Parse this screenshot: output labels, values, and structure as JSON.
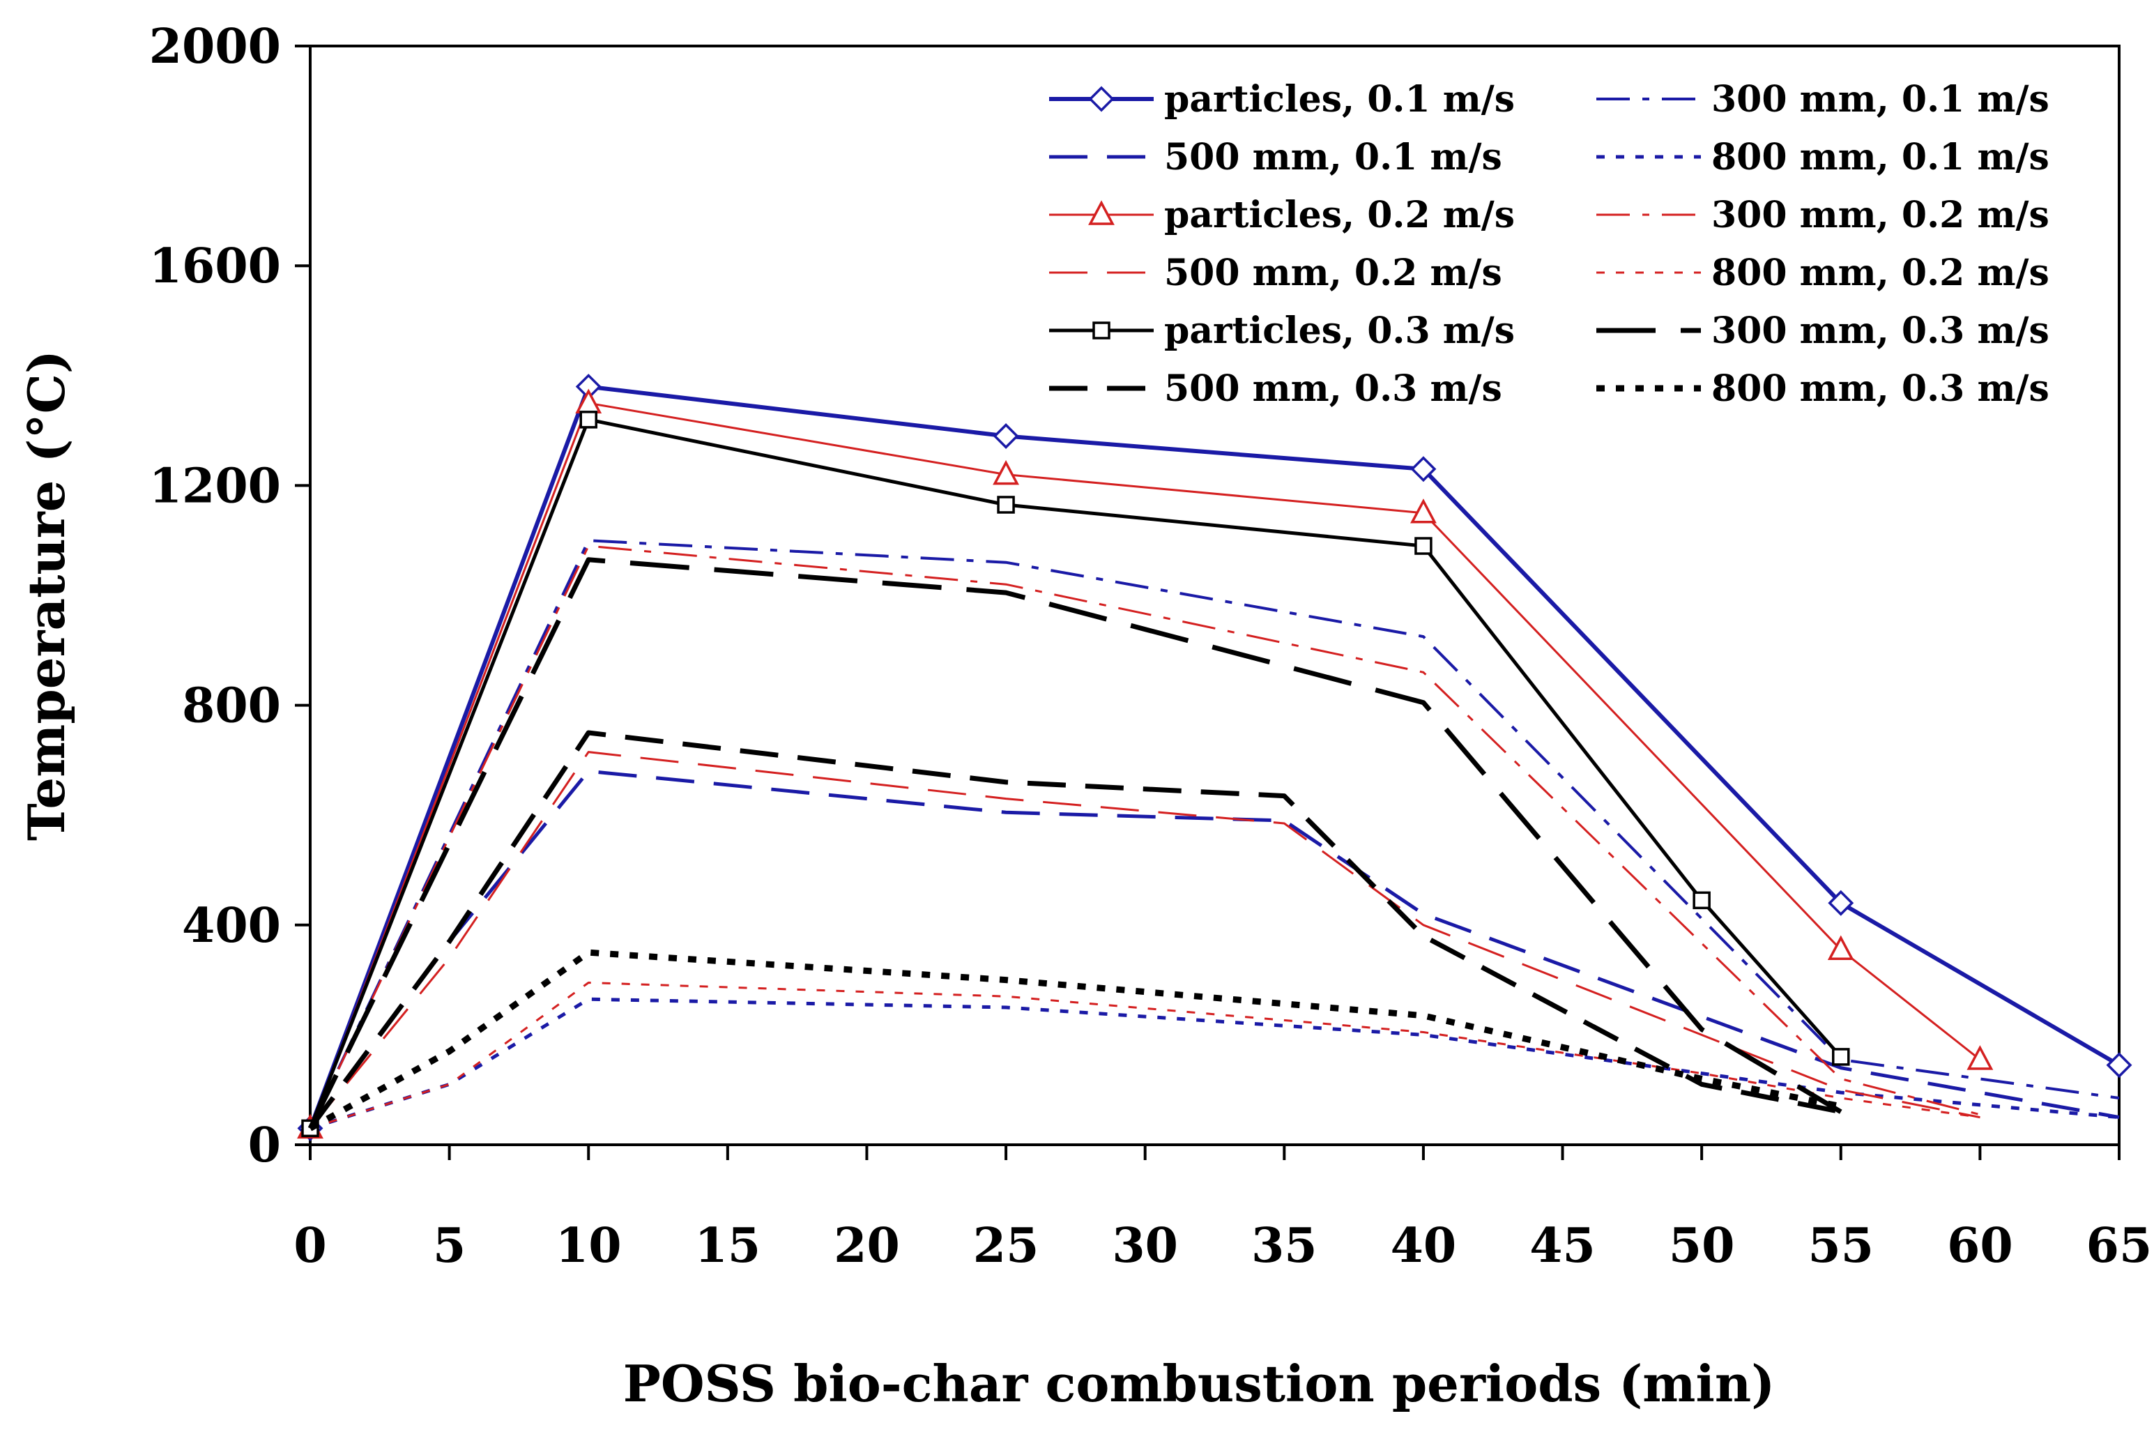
{
  "chart_data": {
    "type": "line",
    "xlabel": "POSS bio-char combustion periods (min)",
    "ylabel": "Temperature (°C)",
    "x_categories": [
      "0",
      "5",
      "10",
      "15",
      "20",
      "25",
      "30",
      "35",
      "40",
      "45",
      "50",
      "55",
      "60",
      "65"
    ],
    "x_note": "x values are the printed tick labels; points are placed on the evenly spaced category positions",
    "ylim": [
      0,
      2000
    ],
    "y_ticks": [
      "0",
      "400",
      "800",
      "1200",
      "1600",
      "2000"
    ],
    "grid": false,
    "legend_position": "top-right",
    "series": [
      {
        "name": "particles, 0.1 m/s",
        "color": "#1a1aa6",
        "style": "solid",
        "width": 6,
        "marker": "diamond",
        "x": [
          "0",
          "10",
          "25",
          "40",
          "55",
          "65"
        ],
        "y": [
          30,
          1380,
          1290,
          1230,
          440,
          145
        ]
      },
      {
        "name": "300 mm, 0.1 m/s",
        "color": "#1a1aa6",
        "style": "dashdot",
        "width": 4,
        "marker": "none",
        "x": [
          "0",
          "10",
          "25",
          "40",
          "55",
          "65"
        ],
        "y": [
          30,
          1100,
          1060,
          925,
          155,
          85
        ]
      },
      {
        "name": "500 mm, 0.1 m/s",
        "color": "#1a1aa6",
        "style": "dash",
        "width": 5,
        "marker": "none",
        "x": [
          "0",
          "5",
          "10",
          "25",
          "35",
          "40",
          "55",
          "65"
        ],
        "y": [
          30,
          370,
          680,
          605,
          590,
          420,
          140,
          50
        ]
      },
      {
        "name": "800 mm, 0.1 m/s",
        "color": "#1a1aa6",
        "style": "dot",
        "width": 5,
        "marker": "none",
        "x": [
          "0",
          "5",
          "10",
          "25",
          "40",
          "50",
          "55",
          "65"
        ],
        "y": [
          30,
          110,
          265,
          250,
          200,
          130,
          95,
          50
        ]
      },
      {
        "name": "particles, 0.2 m/s",
        "color": "#d42020",
        "style": "solid",
        "width": 3,
        "marker": "triangle",
        "x": [
          "0",
          "10",
          "25",
          "40",
          "55",
          "60"
        ],
        "y": [
          30,
          1350,
          1220,
          1150,
          355,
          155
        ]
      },
      {
        "name": "300 mm, 0.2 m/s",
        "color": "#d42020",
        "style": "dashdot",
        "width": 3,
        "marker": "none",
        "x": [
          "0",
          "10",
          "25",
          "40",
          "55",
          "60"
        ],
        "y": [
          30,
          1090,
          1020,
          860,
          120,
          55
        ]
      },
      {
        "name": "500 mm, 0.2 m/s",
        "color": "#d42020",
        "style": "dash",
        "width": 3,
        "marker": "none",
        "x": [
          "0",
          "5",
          "10",
          "25",
          "35",
          "40",
          "55",
          "60"
        ],
        "y": [
          30,
          340,
          715,
          630,
          585,
          400,
          100,
          50
        ]
      },
      {
        "name": "800 mm, 0.2 m/s",
        "color": "#d42020",
        "style": "dot",
        "width": 3,
        "marker": "none",
        "x": [
          "0",
          "5",
          "10",
          "25",
          "40",
          "50",
          "55",
          "60"
        ],
        "y": [
          30,
          110,
          295,
          270,
          205,
          130,
          85,
          50
        ]
      },
      {
        "name": "particles, 0.3 m/s",
        "color": "#000000",
        "style": "solid",
        "width": 5,
        "marker": "square",
        "x": [
          "0",
          "10",
          "25",
          "40",
          "50",
          "55"
        ],
        "y": [
          30,
          1320,
          1165,
          1090,
          445,
          160
        ]
      },
      {
        "name": "300 mm, 0.3 m/s",
        "color": "#000000",
        "style": "longdash",
        "width": 7,
        "marker": "none",
        "x": [
          "0",
          "10",
          "25",
          "40",
          "50",
          "55"
        ],
        "y": [
          30,
          1065,
          1005,
          805,
          210,
          60
        ]
      },
      {
        "name": "500 mm, 0.3 m/s",
        "color": "#000000",
        "style": "dash",
        "width": 7,
        "marker": "none",
        "x": [
          "0",
          "5",
          "10",
          "25",
          "35",
          "40",
          "50",
          "55"
        ],
        "y": [
          30,
          370,
          750,
          660,
          635,
          380,
          110,
          60
        ]
      },
      {
        "name": "800 mm, 0.3 m/s",
        "color": "#000000",
        "style": "dot",
        "width": 9,
        "marker": "none",
        "x": [
          "0",
          "5",
          "10",
          "25",
          "40",
          "50",
          "55"
        ],
        "y": [
          30,
          170,
          350,
          300,
          235,
          120,
          70
        ]
      }
    ]
  }
}
